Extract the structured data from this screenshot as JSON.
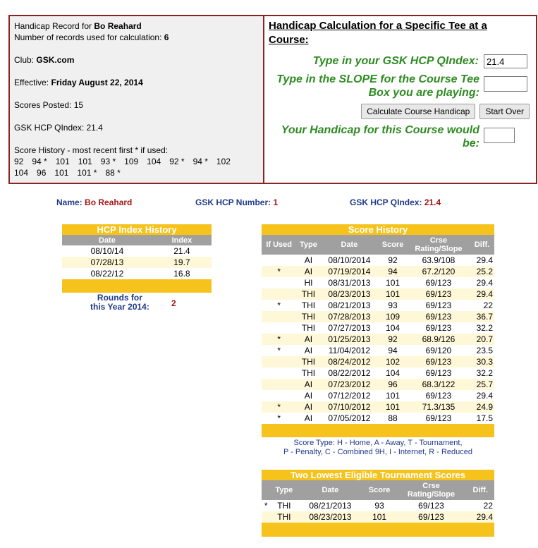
{
  "record": {
    "title_prefix": "Handicap Record for ",
    "name": "Bo Reahard",
    "records_used_label": "Number of records used for calculation: ",
    "records_used": "6",
    "club_label": "Club: ",
    "club": "GSK.com",
    "effective_label": "Effective: ",
    "effective": "Friday August 22, 2014",
    "scores_posted": "Scores Posted: 15",
    "qindex": "GSK HCP QIndex: 21.4",
    "history_label": "Score History - most recent first * if used:",
    "history_line1": [
      "92",
      "94 *",
      "101",
      "101",
      "93 *",
      "109",
      "104",
      "92 *",
      "94 *",
      "102"
    ],
    "history_line2": [
      "104",
      "96",
      "101",
      "101 *",
      "88 *"
    ]
  },
  "calc": {
    "title": "Handicap Calculation for a Specific Tee at a Course:",
    "qindex_prompt": "Type in your GSK HCP QIndex:",
    "qindex_value": "21.4",
    "slope_prompt": "Type in the SLOPE for the Course Tee Box you are playing:",
    "slope_value": "",
    "calc_button": "Calculate Course Handicap",
    "start_over_button": "Start Over",
    "result_prompt": "Your Handicap for this Course would be:",
    "result_value": ""
  },
  "summary": {
    "name_label": "Name:",
    "name_value": "Bo Reahard",
    "number_label": "GSK HCP Number:",
    "number_value": "1",
    "qindex_label": "GSK HCP QIndex:",
    "qindex_value": "21.4"
  },
  "hcp_history": {
    "title": "HCP Index History",
    "headers": [
      "Date",
      "Index"
    ],
    "rows": [
      [
        "08/10/14",
        "21.4"
      ],
      [
        "07/28/13",
        "19.7"
      ],
      [
        "08/22/12",
        "16.8"
      ]
    ],
    "rounds_label_1": "Rounds for",
    "rounds_label_2": "this Year 2014:",
    "rounds_value": "2"
  },
  "score_history": {
    "title": "Score History",
    "headers": [
      "If Used",
      "Type",
      "Date",
      "Score",
      "Crse Rating/Slope",
      "Diff."
    ],
    "rows": [
      [
        "",
        "AI",
        "08/10/2014",
        "92",
        "63.9/108",
        "29.4"
      ],
      [
        "*",
        "AI",
        "07/19/2014",
        "94",
        "67.2/120",
        "25.2"
      ],
      [
        "",
        "HI",
        "08/31/2013",
        "101",
        "69/123",
        "29.4"
      ],
      [
        "",
        "THI",
        "08/23/2013",
        "101",
        "69/123",
        "29.4"
      ],
      [
        "*",
        "THI",
        "08/21/2013",
        "93",
        "69/123",
        "22"
      ],
      [
        "",
        "THI",
        "07/28/2013",
        "109",
        "69/123",
        "36.7"
      ],
      [
        "",
        "THI",
        "07/27/2013",
        "104",
        "69/123",
        "32.2"
      ],
      [
        "*",
        "AI",
        "01/25/2013",
        "92",
        "68.9/126",
        "20.7"
      ],
      [
        "*",
        "AI",
        "11/04/2012",
        "94",
        "69/120",
        "23.5"
      ],
      [
        "",
        "THI",
        "08/24/2012",
        "102",
        "69/123",
        "30.3"
      ],
      [
        "",
        "THI",
        "08/22/2012",
        "104",
        "69/123",
        "32.2"
      ],
      [
        "",
        "AI",
        "07/23/2012",
        "96",
        "68.3/122",
        "25.7"
      ],
      [
        "",
        "AI",
        "07/12/2012",
        "101",
        "69/123",
        "29.4"
      ],
      [
        "*",
        "AI",
        "07/10/2012",
        "101",
        "71.3/135",
        "24.9"
      ],
      [
        "*",
        "AI",
        "07/05/2012",
        "88",
        "69/123",
        "17.5"
      ]
    ],
    "legend_line1": "Score Type: H - Home, A - Away, T - Tournament,",
    "legend_line2": "P - Penalty, C - Combined 9H, I - Internet, R - Reduced"
  },
  "lowest": {
    "title": "Two Lowest Eligible Tournament Scores",
    "headers": [
      "",
      "Type",
      "Date",
      "Score",
      "Crse Rating/Slope",
      "Diff."
    ],
    "rows": [
      [
        "*",
        "THI",
        "08/21/2013",
        "93",
        "69/123",
        "22"
      ],
      [
        "",
        "THI",
        "08/23/2013",
        "101",
        "69/123",
        "29.4"
      ]
    ]
  },
  "colors": {
    "border": "#8b2323",
    "gold": "#f5c31b",
    "green": "#2e8b22",
    "navy": "#1f3a8a",
    "red": "#a31515",
    "gray_header": "#a0a0a0"
  }
}
